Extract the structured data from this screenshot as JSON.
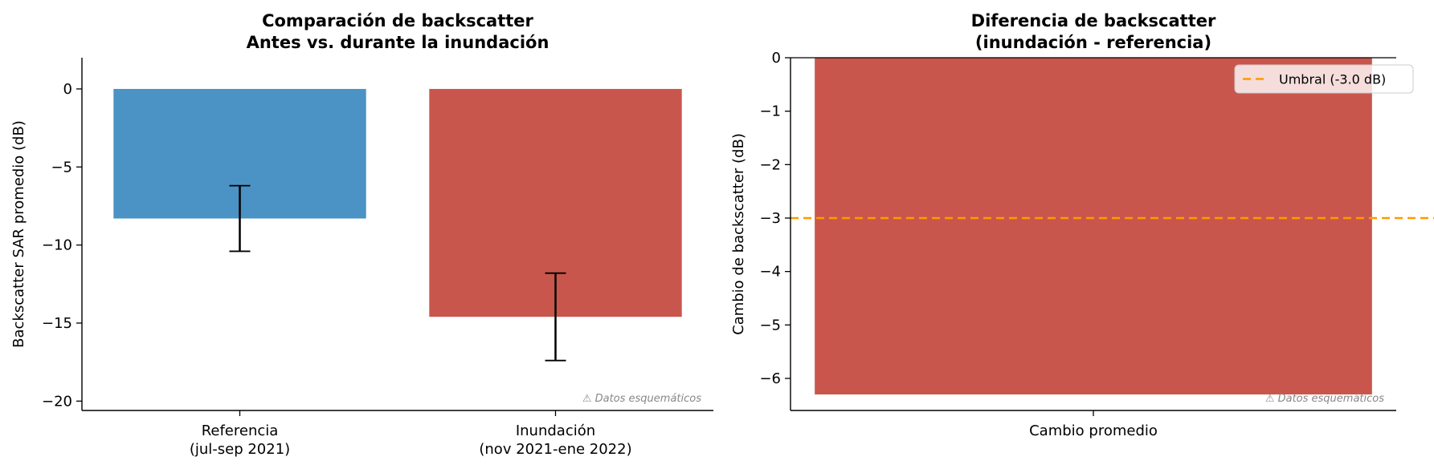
{
  "chart_data": [
    {
      "type": "bar",
      "title_lines": [
        "Comparación de backscatter",
        "Antes vs. durante la inundación"
      ],
      "ylabel": "Backscatter SAR promedio (dB)",
      "xlabel": "",
      "categories": [
        [
          "Referencia",
          "(jul-sep 2021)"
        ],
        [
          "Inundación",
          "(nov 2021-ene 2022)"
        ]
      ],
      "values": [
        -8.3,
        -14.6
      ],
      "errors": [
        2.1,
        2.8
      ],
      "colors": [
        "#4a93c4",
        "#c9564c"
      ],
      "ylim": [
        -20.6,
        2.0
      ],
      "yticks": [
        0,
        -5,
        -10,
        -15,
        -20
      ],
      "ytick_labels": [
        "0",
        "−5",
        "−10",
        "−15",
        "−20"
      ],
      "note": "⚠ Datos esquemáticos"
    },
    {
      "type": "bar",
      "title_lines": [
        "Diferencia de backscatter",
        "(inundación - referencia)"
      ],
      "ylabel": "Cambio de backscatter (dB)",
      "xlabel": "",
      "categories": [
        [
          "Cambio promedio"
        ]
      ],
      "values": [
        -6.3
      ],
      "colors": [
        "#c9564c"
      ],
      "ylim": [
        -6.6,
        0
      ],
      "yticks": [
        0,
        -1,
        -2,
        -3,
        -4,
        -5,
        -6
      ],
      "ytick_labels": [
        "0",
        "−1",
        "−2",
        "−3",
        "−4",
        "−5",
        "−6"
      ],
      "threshold": {
        "value": -3.0,
        "label": "Umbral (-3.0 dB)",
        "color": "#ff9900"
      },
      "legend_position": "top-right",
      "note": "⚠ Datos esquemáticos"
    }
  ]
}
